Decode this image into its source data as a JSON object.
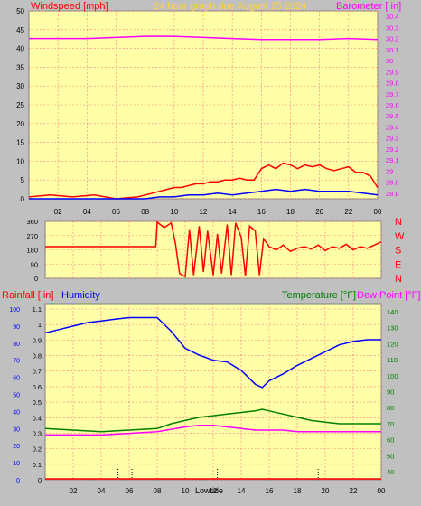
{
  "header": {
    "left_label": "Windspeed [mph]",
    "center_label": "24 hour graph due   August 25 2024",
    "right_label": "Barometer [ in]"
  },
  "colors": {
    "background": "#c0c0c0",
    "plot_bg": "#ffffa8",
    "grid": "#ff8080",
    "wind": "#ff0000",
    "gust": "#0000ff",
    "barometer": "#ff00ff",
    "direction": "#ff0000",
    "humidity": "#0000ff",
    "temperature": "#008000",
    "dewpoint": "#ff00ff",
    "rainfall": "#ff0000",
    "header_center": "#ffd040"
  },
  "chart_data": [
    {
      "type": "line",
      "id": "wind",
      "x_ticks": [
        "02",
        "04",
        "06",
        "08",
        "10",
        "12",
        "14",
        "16",
        "18",
        "20",
        "22",
        "00"
      ],
      "ylabel_left": "Windspeed [mph]",
      "ylabel_right": "Barometer [ in]",
      "y_ticks_left": [
        "50",
        "45",
        "40",
        "35",
        "30",
        "25",
        "20",
        "15",
        "10",
        "5",
        "0"
      ],
      "y_ticks_right": [
        "30.4",
        "30.3",
        "30.2",
        "30.1",
        "30",
        "29.9",
        "29.8",
        "29.7",
        "29.6",
        "29.5",
        "29.4",
        "29.3",
        "29.2",
        "29.1",
        "29",
        "28.9",
        "28.8"
      ],
      "ylim_left": [
        0,
        50
      ],
      "ylim_right": [
        28.75,
        30.45
      ],
      "xlim": [
        0,
        24
      ],
      "grid": true,
      "series": [
        {
          "key": "wind",
          "x": [
            0,
            1.5,
            3,
            4.5,
            6,
            7.5,
            8,
            8.5,
            9,
            9.5,
            10,
            10.5,
            11,
            11.5,
            12,
            12.5,
            13,
            13.5,
            14,
            14.5,
            15,
            15.5,
            16,
            16.5,
            17,
            17.5,
            18,
            18.5,
            19,
            19.5,
            20,
            20.5,
            21,
            21.5,
            22,
            22.5,
            23,
            23.5,
            24
          ],
          "values": [
            0.5,
            1,
            0.5,
            1,
            0,
            0.5,
            1,
            1.5,
            2,
            2.5,
            3,
            3,
            3.5,
            4,
            4,
            4.5,
            4.5,
            5,
            5,
            5.5,
            5,
            5,
            8,
            9,
            8,
            9.5,
            9,
            8,
            9,
            8.5,
            9,
            8,
            7.5,
            8,
            8.5,
            7,
            7,
            6,
            3
          ]
        },
        {
          "key": "gust",
          "x": [
            0,
            2,
            4,
            6,
            8,
            9,
            10,
            11,
            12,
            13,
            14,
            15,
            16,
            17,
            18,
            19,
            20,
            21,
            22,
            23,
            24
          ],
          "values": [
            0,
            0,
            0,
            0,
            0,
            0.5,
            0.5,
            1,
            1,
            1.5,
            1,
            1.5,
            2,
            2.5,
            2,
            2.5,
            2,
            2,
            2,
            1.5,
            1
          ]
        },
        {
          "key": "barometer",
          "x": [
            0,
            2,
            4,
            6,
            8,
            10,
            12,
            14,
            16,
            18,
            20,
            22,
            24
          ],
          "values": [
            30.2,
            30.2,
            30.2,
            30.21,
            30.22,
            30.22,
            30.21,
            30.2,
            30.19,
            30.19,
            30.19,
            30.2,
            30.19
          ]
        }
      ]
    },
    {
      "type": "line",
      "id": "direction",
      "x_ticks": [
        "02",
        "04",
        "06",
        "08",
        "10",
        "12",
        "14",
        "16",
        "18",
        "20",
        "22",
        "00"
      ],
      "y_ticks": [
        "360",
        "270",
        "180",
        "90",
        "0"
      ],
      "ylim": [
        0,
        360
      ],
      "xlim": [
        0,
        24
      ],
      "compass_labels": [
        "N",
        "W",
        "S",
        "E",
        "N"
      ],
      "series": [
        {
          "key": "direction",
          "x": [
            0,
            7.9,
            8,
            8.5,
            9,
            9.3,
            9.6,
            10,
            10.3,
            10.6,
            11,
            11.3,
            11.6,
            12,
            12.3,
            12.6,
            13,
            13.3,
            13.6,
            14,
            14.3,
            14.6,
            15,
            15.3,
            15.6,
            16,
            16.5,
            17,
            17.5,
            18,
            18.5,
            19,
            19.5,
            20,
            20.5,
            21,
            21.5,
            22,
            22.5,
            23,
            23.5,
            24
          ],
          "values": [
            200,
            200,
            355,
            320,
            350,
            220,
            30,
            10,
            310,
            20,
            330,
            40,
            300,
            20,
            280,
            30,
            340,
            20,
            350,
            260,
            15,
            330,
            300,
            20,
            250,
            200,
            180,
            210,
            170,
            190,
            200,
            185,
            210,
            175,
            200,
            190,
            215,
            180,
            200,
            190,
            210,
            230
          ]
        }
      ]
    },
    {
      "type": "line",
      "id": "climate",
      "x_ticks": [
        "02",
        "04",
        "06",
        "08",
        "10",
        "12",
        "14",
        "16",
        "18",
        "20",
        "22",
        "00"
      ],
      "low_tide_label": "Lowtide",
      "rain_label": "Rainfall [.in]",
      "humidity_label": "Humidity",
      "temperature_label": "Temperature [°F]",
      "dewpoint_label": "Dew Point [°F]",
      "humidity_ticks": [
        "100",
        "90",
        "80",
        "70",
        "60",
        "50",
        "40",
        "30",
        "20",
        "10",
        "0"
      ],
      "rain_ticks": [
        "1.1",
        "1",
        "0.9",
        "0.8",
        "0.7",
        "0.6",
        "0.5",
        "0.4",
        "0.3",
        "0.2",
        "0.1",
        "0"
      ],
      "temp_ticks": [
        "140",
        "130",
        "120",
        "110",
        "100",
        "90",
        "80",
        "70",
        "60",
        "50",
        "40"
      ],
      "humidity_ylim": [
        0,
        100
      ],
      "temp_ylim": [
        35,
        145
      ],
      "xlim": [
        0,
        24
      ],
      "series": [
        {
          "key": "humidity",
          "x": [
            0,
            1,
            2,
            3,
            4,
            5,
            6,
            7,
            8,
            9,
            10,
            11,
            12,
            13,
            14,
            15,
            15.5,
            16,
            17,
            18,
            19,
            20,
            21,
            22,
            23,
            24
          ],
          "values": [
            86,
            88,
            90,
            92,
            93,
            94,
            95,
            95,
            95,
            87,
            77,
            73,
            70,
            69,
            64,
            56,
            54,
            58,
            62,
            67,
            71,
            75,
            79,
            81,
            82,
            82
          ]
        },
        {
          "key": "temperature",
          "x": [
            0,
            2,
            4,
            6,
            8,
            9,
            10,
            11,
            12,
            13,
            14,
            15,
            15.5,
            16,
            17,
            18,
            19,
            20,
            21,
            22,
            23,
            24
          ],
          "values": [
            67,
            66,
            65,
            66,
            67,
            70,
            72,
            74,
            75,
            76,
            77,
            78,
            79,
            78,
            76,
            74,
            72,
            71,
            70,
            70,
            70,
            70
          ]
        },
        {
          "key": "dewpoint",
          "x": [
            0,
            2,
            4,
            6,
            8,
            10,
            11,
            12,
            13,
            14,
            15,
            16,
            17,
            18,
            20,
            22,
            24
          ],
          "values": [
            63,
            63,
            63,
            64,
            65,
            68,
            69,
            69,
            68,
            67,
            66,
            66,
            66,
            65,
            65,
            65,
            65
          ]
        },
        {
          "key": "rainfall",
          "x": [
            0,
            24
          ],
          "values": [
            0,
            0
          ]
        }
      ]
    }
  ]
}
